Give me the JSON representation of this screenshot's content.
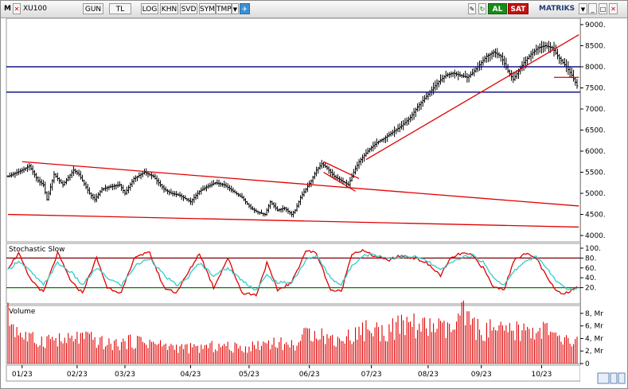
{
  "toolbar": {
    "m_label": "M",
    "symbol": "XU100",
    "period": "GUN",
    "currency": "TL",
    "buttons": [
      "LOG",
      "KHN",
      "SVD",
      "SYM",
      "TMP"
    ],
    "buy_label": "AL",
    "sell_label": "SAT",
    "brand": "MATRIKS"
  },
  "colors": {
    "price_bar": "#000000",
    "trend_line": "#e00000",
    "level_line": "#000080",
    "stoch_k": "#e00000",
    "stoch_d": "#33cccc",
    "stoch_upper": "#800000",
    "stoch_lower": "#008000",
    "volume_bar": "#e00000"
  },
  "chart_data": [
    {
      "type": "ohlc",
      "title": "XU100",
      "y_ticks": [
        9000,
        8500,
        8000,
        7500,
        7000,
        6500,
        6000,
        5500,
        5000,
        4500,
        4000
      ],
      "ylim": [
        3850,
        9150
      ],
      "x_tick_labels": [
        "01/23",
        "02/23",
        "03/23",
        "04/23",
        "05/23",
        "06/23",
        "07/23",
        "08/23",
        "09/23",
        "10/23"
      ],
      "x_tick_index": [
        8,
        39,
        66,
        103,
        136,
        170,
        205,
        237,
        267,
        301
      ],
      "bar_count": 322,
      "anchors": [
        [
          0,
          5400
        ],
        [
          8,
          5550
        ],
        [
          12,
          5650
        ],
        [
          17,
          5300
        ],
        [
          20,
          5200
        ],
        [
          22,
          4850
        ],
        [
          26,
          5450
        ],
        [
          31,
          5200
        ],
        [
          37,
          5550
        ],
        [
          40,
          5450
        ],
        [
          46,
          5000
        ],
        [
          49,
          4850
        ],
        [
          53,
          5100
        ],
        [
          57,
          5150
        ],
        [
          63,
          5200
        ],
        [
          66,
          5000
        ],
        [
          71,
          5350
        ],
        [
          77,
          5500
        ],
        [
          82,
          5400
        ],
        [
          88,
          5100
        ],
        [
          92,
          5000
        ],
        [
          97,
          4950
        ],
        [
          103,
          4800
        ],
        [
          108,
          5050
        ],
        [
          112,
          5150
        ],
        [
          117,
          5250
        ],
        [
          122,
          5200
        ],
        [
          127,
          5050
        ],
        [
          132,
          4900
        ],
        [
          137,
          4650
        ],
        [
          141,
          4550
        ],
        [
          145,
          4500
        ],
        [
          148,
          4800
        ],
        [
          152,
          4600
        ],
        [
          156,
          4650
        ],
        [
          160,
          4500
        ],
        [
          162,
          4600
        ],
        [
          165,
          4900
        ],
        [
          168,
          5100
        ],
        [
          171,
          5300
        ],
        [
          174,
          5550
        ],
        [
          177,
          5700
        ],
        [
          180,
          5600
        ],
        [
          184,
          5400
        ],
        [
          188,
          5300
        ],
        [
          192,
          5200
        ],
        [
          195,
          5500
        ],
        [
          198,
          5750
        ],
        [
          201,
          5900
        ],
        [
          204,
          6050
        ],
        [
          208,
          6200
        ],
        [
          212,
          6300
        ],
        [
          217,
          6450
        ],
        [
          222,
          6600
        ],
        [
          227,
          6800
        ],
        [
          231,
          7050
        ],
        [
          235,
          7250
        ],
        [
          239,
          7450
        ],
        [
          243,
          7650
        ],
        [
          247,
          7800
        ],
        [
          251,
          7850
        ],
        [
          255,
          7800
        ],
        [
          259,
          7750
        ],
        [
          262,
          7850
        ],
        [
          266,
          8050
        ],
        [
          270,
          8250
        ],
        [
          274,
          8350
        ],
        [
          278,
          8250
        ],
        [
          282,
          7900
        ],
        [
          285,
          7700
        ],
        [
          288,
          7900
        ],
        [
          291,
          8100
        ],
        [
          295,
          8300
        ],
        [
          299,
          8450
        ],
        [
          303,
          8500
        ],
        [
          307,
          8450
        ],
        [
          311,
          8200
        ],
        [
          315,
          8000
        ],
        [
          318,
          7800
        ],
        [
          321,
          7550
        ]
      ],
      "horizontal_levels": [
        8000,
        7400
      ],
      "trend_lines": [
        {
          "from": [
            8,
            5750
          ],
          "to": [
            322,
            4700
          ]
        },
        {
          "from": [
            0,
            4500
          ],
          "to": [
            322,
            4200
          ]
        },
        {
          "from": [
            202,
            5800
          ],
          "to": [
            322,
            8760
          ]
        },
        {
          "from": [
            178,
            5500
          ],
          "to": [
            196,
            5050
          ]
        },
        {
          "from": [
            178,
            5750
          ],
          "to": [
            198,
            5350
          ]
        },
        {
          "from": [
            308,
            7750
          ],
          "to": [
            322,
            7750
          ]
        }
      ]
    },
    {
      "type": "line",
      "title": "Stochastic Slow",
      "y_ticks": [
        100,
        80,
        60,
        40,
        20
      ],
      "ylim": [
        0,
        100
      ],
      "levels": [
        80,
        20
      ],
      "series": [
        {
          "name": "K",
          "anchors": [
            [
              0,
              60
            ],
            [
              6,
              90
            ],
            [
              12,
              40
            ],
            [
              20,
              10
            ],
            [
              28,
              90
            ],
            [
              36,
              30
            ],
            [
              42,
              10
            ],
            [
              50,
              80
            ],
            [
              56,
              20
            ],
            [
              64,
              10
            ],
            [
              72,
              85
            ],
            [
              80,
              90
            ],
            [
              88,
              20
            ],
            [
              95,
              10
            ],
            [
              100,
              40
            ],
            [
              108,
              90
            ],
            [
              116,
              20
            ],
            [
              124,
              80
            ],
            [
              132,
              10
            ],
            [
              140,
              5
            ],
            [
              146,
              70
            ],
            [
              152,
              15
            ],
            [
              160,
              30
            ],
            [
              168,
              95
            ],
            [
              174,
              90
            ],
            [
              182,
              15
            ],
            [
              188,
              12
            ],
            [
              194,
              90
            ],
            [
              200,
              95
            ],
            [
              206,
              85
            ],
            [
              214,
              75
            ],
            [
              222,
              85
            ],
            [
              230,
              80
            ],
            [
              236,
              70
            ],
            [
              244,
              45
            ],
            [
              250,
              80
            ],
            [
              256,
              90
            ],
            [
              262,
              85
            ],
            [
              268,
              60
            ],
            [
              274,
              20
            ],
            [
              280,
              18
            ],
            [
              286,
              80
            ],
            [
              292,
              88
            ],
            [
              298,
              80
            ],
            [
              304,
              40
            ],
            [
              310,
              10
            ],
            [
              316,
              10
            ],
            [
              321,
              25
            ]
          ]
        },
        {
          "name": "D",
          "anchors": [
            [
              0,
              55
            ],
            [
              6,
              75
            ],
            [
              12,
              55
            ],
            [
              20,
              25
            ],
            [
              28,
              70
            ],
            [
              36,
              50
            ],
            [
              42,
              25
            ],
            [
              50,
              60
            ],
            [
              56,
              40
            ],
            [
              64,
              25
            ],
            [
              72,
              65
            ],
            [
              80,
              80
            ],
            [
              88,
              45
            ],
            [
              95,
              25
            ],
            [
              100,
              35
            ],
            [
              108,
              70
            ],
            [
              116,
              45
            ],
            [
              124,
              60
            ],
            [
              132,
              35
            ],
            [
              140,
              15
            ],
            [
              146,
              45
            ],
            [
              152,
              30
            ],
            [
              160,
              30
            ],
            [
              168,
              75
            ],
            [
              174,
              85
            ],
            [
              182,
              40
            ],
            [
              188,
              25
            ],
            [
              194,
              65
            ],
            [
              200,
              85
            ],
            [
              206,
              88
            ],
            [
              214,
              80
            ],
            [
              222,
              82
            ],
            [
              230,
              82
            ],
            [
              236,
              75
            ],
            [
              244,
              55
            ],
            [
              250,
              70
            ],
            [
              256,
              82
            ],
            [
              262,
              85
            ],
            [
              268,
              72
            ],
            [
              274,
              40
            ],
            [
              280,
              25
            ],
            [
              286,
              55
            ],
            [
              292,
              75
            ],
            [
              298,
              82
            ],
            [
              304,
              60
            ],
            [
              310,
              30
            ],
            [
              316,
              15
            ],
            [
              321,
              18
            ]
          ]
        }
      ]
    },
    {
      "type": "bar",
      "title": "Volume",
      "y_ticks": [
        "8, Mr",
        "6, Mr",
        "4, Mr",
        "2, Mr",
        "0"
      ],
      "ylim": [
        0,
        8.5
      ],
      "unit": "Mr",
      "anchors": [
        [
          0,
          7.5
        ],
        [
          4,
          5.8
        ],
        [
          8,
          4.5
        ],
        [
          16,
          3.5
        ],
        [
          24,
          4.0
        ],
        [
          32,
          3.5
        ],
        [
          40,
          4.2
        ],
        [
          48,
          3.8
        ],
        [
          56,
          3.0
        ],
        [
          64,
          3.2
        ],
        [
          72,
          3.6
        ],
        [
          80,
          3.4
        ],
        [
          88,
          2.8
        ],
        [
          96,
          2.6
        ],
        [
          104,
          2.4
        ],
        [
          112,
          2.6
        ],
        [
          120,
          2.8
        ],
        [
          128,
          2.5
        ],
        [
          136,
          2.6
        ],
        [
          144,
          3.2
        ],
        [
          150,
          3.5
        ],
        [
          156,
          3.0
        ],
        [
          162,
          3.0
        ],
        [
          168,
          4.5
        ],
        [
          174,
          5.5
        ],
        [
          180,
          4.0
        ],
        [
          186,
          3.8
        ],
        [
          192,
          4.2
        ],
        [
          198,
          5.0
        ],
        [
          204,
          5.6
        ],
        [
          210,
          5.0
        ],
        [
          216,
          5.5
        ],
        [
          222,
          5.8
        ],
        [
          228,
          6.4
        ],
        [
          234,
          5.5
        ],
        [
          240,
          6.0
        ],
        [
          246,
          5.2
        ],
        [
          252,
          5.6
        ],
        [
          256,
          7.8
        ],
        [
          262,
          6.0
        ],
        [
          268,
          5.0
        ],
        [
          274,
          5.4
        ],
        [
          280,
          4.8
        ],
        [
          286,
          5.2
        ],
        [
          292,
          5.0
        ],
        [
          298,
          5.6
        ],
        [
          304,
          5.2
        ],
        [
          310,
          3.8
        ],
        [
          316,
          3.5
        ],
        [
          321,
          3.4
        ]
      ]
    }
  ]
}
